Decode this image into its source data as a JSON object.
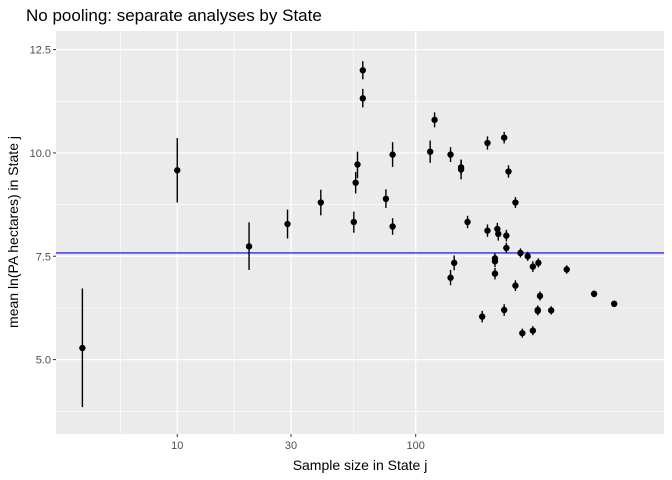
{
  "chart_data": {
    "type": "scatter",
    "title": "No pooling: separate analyses by State",
    "xlabel": "Sample size in State j",
    "ylabel": "mean ln(PA hectares) in State j",
    "x_scale": "log",
    "xlim": [
      3.1,
      1100
    ],
    "ylim": [
      3.2,
      12.95
    ],
    "x_ticks": [
      10,
      30,
      100
    ],
    "x_tick_labels": [
      "10",
      "30",
      "100"
    ],
    "y_ticks": [
      5.0,
      7.5,
      10.0,
      12.5
    ],
    "y_tick_labels": [
      "5.0",
      "7.5",
      "10.0",
      "12.5"
    ],
    "grid": true,
    "reference_line": {
      "y": 7.58,
      "color": "#0000ff"
    },
    "point_color": "#000000",
    "panel_background": "#ebebeb",
    "points": [
      {
        "x": 4,
        "y": 5.28,
        "lo": 3.85,
        "hi": 6.72
      },
      {
        "x": 10,
        "y": 9.58,
        "lo": 8.8,
        "hi": 10.36
      },
      {
        "x": 20,
        "y": 7.74,
        "lo": 7.17,
        "hi": 8.32
      },
      {
        "x": 29,
        "y": 8.28,
        "lo": 7.93,
        "hi": 8.63
      },
      {
        "x": 40,
        "y": 8.8,
        "lo": 8.49,
        "hi": 9.11
      },
      {
        "x": 55,
        "y": 8.33,
        "lo": 8.07,
        "hi": 8.58
      },
      {
        "x": 56,
        "y": 9.28,
        "lo": 9.02,
        "hi": 9.54
      },
      {
        "x": 57,
        "y": 9.72,
        "lo": 9.39,
        "hi": 10.03
      },
      {
        "x": 60,
        "y": 11.32,
        "lo": 11.1,
        "hi": 11.55
      },
      {
        "x": 60,
        "y": 12.0,
        "lo": 11.78,
        "hi": 12.22
      },
      {
        "x": 75,
        "y": 8.89,
        "lo": 8.67,
        "hi": 9.12
      },
      {
        "x": 80,
        "y": 9.96,
        "lo": 9.66,
        "hi": 10.26
      },
      {
        "x": 80,
        "y": 8.22,
        "lo": 8.02,
        "hi": 8.42
      },
      {
        "x": 115,
        "y": 10.03,
        "lo": 9.76,
        "hi": 10.3
      },
      {
        "x": 120,
        "y": 10.8,
        "lo": 10.62,
        "hi": 10.98
      },
      {
        "x": 140,
        "y": 9.96,
        "lo": 9.78,
        "hi": 10.14
      },
      {
        "x": 140,
        "y": 6.98,
        "lo": 6.8,
        "hi": 7.17
      },
      {
        "x": 145,
        "y": 7.34,
        "lo": 7.16,
        "hi": 7.52
      },
      {
        "x": 155,
        "y": 9.65,
        "lo": 9.47,
        "hi": 9.83
      },
      {
        "x": 155,
        "y": 9.6,
        "lo": 9.36,
        "hi": 9.84
      },
      {
        "x": 165,
        "y": 8.33,
        "lo": 8.18,
        "hi": 8.48
      },
      {
        "x": 190,
        "y": 6.04,
        "lo": 5.9,
        "hi": 6.18
      },
      {
        "x": 200,
        "y": 10.24,
        "lo": 10.08,
        "hi": 10.4
      },
      {
        "x": 200,
        "y": 8.12,
        "lo": 7.97,
        "hi": 8.27
      },
      {
        "x": 215,
        "y": 7.45,
        "lo": 7.33,
        "hi": 7.57
      },
      {
        "x": 215,
        "y": 7.38,
        "lo": 7.24,
        "hi": 7.52
      },
      {
        "x": 215,
        "y": 7.08,
        "lo": 6.94,
        "hi": 7.22
      },
      {
        "x": 220,
        "y": 8.16,
        "lo": 8.01,
        "hi": 8.31
      },
      {
        "x": 222,
        "y": 8.04,
        "lo": 7.88,
        "hi": 8.2
      },
      {
        "x": 235,
        "y": 10.37,
        "lo": 10.23,
        "hi": 10.51
      },
      {
        "x": 235,
        "y": 6.2,
        "lo": 6.06,
        "hi": 6.34
      },
      {
        "x": 240,
        "y": 8.0,
        "lo": 7.86,
        "hi": 8.14
      },
      {
        "x": 240,
        "y": 7.7,
        "lo": 7.57,
        "hi": 7.83
      },
      {
        "x": 245,
        "y": 9.55,
        "lo": 9.4,
        "hi": 9.7
      },
      {
        "x": 262,
        "y": 8.8,
        "lo": 8.67,
        "hi": 8.93
      },
      {
        "x": 262,
        "y": 6.79,
        "lo": 6.66,
        "hi": 6.92
      },
      {
        "x": 275,
        "y": 7.58,
        "lo": 7.47,
        "hi": 7.69
      },
      {
        "x": 280,
        "y": 5.64,
        "lo": 5.53,
        "hi": 5.75
      },
      {
        "x": 295,
        "y": 7.5,
        "lo": 7.39,
        "hi": 7.61
      },
      {
        "x": 310,
        "y": 7.25,
        "lo": 7.12,
        "hi": 7.38
      },
      {
        "x": 310,
        "y": 5.7,
        "lo": 5.59,
        "hi": 5.81
      },
      {
        "x": 325,
        "y": 6.18,
        "lo": 6.07,
        "hi": 6.29
      },
      {
        "x": 325,
        "y": 6.2,
        "lo": 6.09,
        "hi": 6.31
      },
      {
        "x": 327,
        "y": 7.34,
        "lo": 7.23,
        "hi": 7.45
      },
      {
        "x": 332,
        "y": 6.54,
        "lo": 6.43,
        "hi": 6.65
      },
      {
        "x": 370,
        "y": 6.19,
        "lo": 6.09,
        "hi": 6.29
      },
      {
        "x": 430,
        "y": 7.18,
        "lo": 7.08,
        "hi": 7.28
      },
      {
        "x": 560,
        "y": 6.59,
        "lo": 6.51,
        "hi": 6.67
      },
      {
        "x": 680,
        "y": 6.35,
        "lo": 6.27,
        "hi": 6.43
      }
    ]
  }
}
